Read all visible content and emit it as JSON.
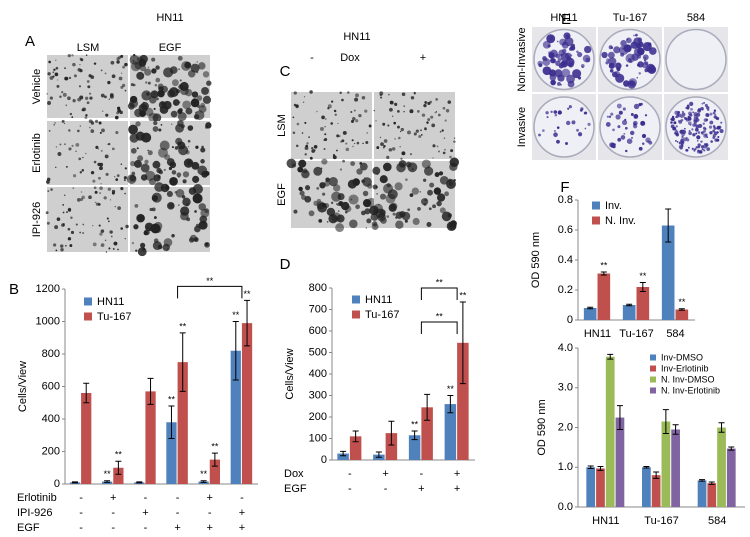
{
  "panels": {
    "A": {
      "label": "A",
      "title": "HN11",
      "columns": [
        "LSM",
        "EGF"
      ],
      "rows": [
        "Vehicle",
        "Erlotinib",
        "IPI-926"
      ]
    },
    "C": {
      "label": "C",
      "title": "HN11",
      "columns": [
        "-",
        "Dox",
        "+"
      ],
      "rows": [
        "LSM",
        "EGF"
      ]
    },
    "E": {
      "label": "E",
      "columns": [
        "HN11",
        "Tu-167",
        "584"
      ],
      "rows": [
        "Non-Invasive",
        "Invasive"
      ]
    }
  },
  "chart_data": [
    {
      "type": "bar",
      "label": "B",
      "ylabel": "Cells/View",
      "ylim": [
        0,
        1200
      ],
      "yticks": [
        0,
        200,
        400,
        600,
        800,
        1000,
        1200
      ],
      "series": [
        {
          "name": "HN11",
          "color": "#4f81bd",
          "values": [
            10,
            15,
            10,
            380,
            15,
            820
          ],
          "errors": [
            3,
            5,
            3,
            100,
            5,
            180
          ]
        },
        {
          "name": "Tu-167",
          "color": "#c0504d",
          "values": [
            560,
            100,
            570,
            750,
            150,
            990
          ],
          "errors": [
            60,
            40,
            80,
            180,
            40,
            140
          ]
        }
      ],
      "conditions": [
        {
          "label": "Erlotinib",
          "values": [
            "-",
            "+",
            "-",
            "-",
            "+",
            "-"
          ]
        },
        {
          "label": "IPI-926",
          "values": [
            "-",
            "-",
            "+",
            "-",
            "-",
            "+"
          ]
        },
        {
          "label": "EGF",
          "values": [
            "-",
            "-",
            "-",
            "+",
            "+",
            "+"
          ]
        }
      ],
      "annotations": [
        {
          "text": "**",
          "series": 0,
          "index": 1
        },
        {
          "text": "**",
          "series": 1,
          "index": 1
        },
        {
          "text": "**",
          "series": 0,
          "index": 3
        },
        {
          "text": "**",
          "series": 1,
          "index": 3
        },
        {
          "text": "**",
          "series": 0,
          "index": 4
        },
        {
          "text": "**",
          "series": 1,
          "index": 4
        },
        {
          "text": "**",
          "series": 0,
          "index": 5
        },
        {
          "text": "**",
          "series": 1,
          "index": 5
        }
      ],
      "brackets": [
        {
          "text": "**",
          "from": 3,
          "to": 5
        }
      ]
    },
    {
      "type": "bar",
      "label": "D",
      "ylabel": "Cells/View",
      "ylim": [
        0,
        800
      ],
      "yticks": [
        0,
        100,
        200,
        300,
        400,
        500,
        600,
        700,
        800
      ],
      "series": [
        {
          "name": "HN11",
          "color": "#4f81bd",
          "values": [
            30,
            25,
            115,
            260
          ],
          "errors": [
            10,
            12,
            20,
            40
          ]
        },
        {
          "name": "Tu-167",
          "color": "#c0504d",
          "values": [
            110,
            125,
            245,
            545
          ],
          "errors": [
            25,
            55,
            60,
            190
          ]
        }
      ],
      "conditions": [
        {
          "label": "Dox",
          "values": [
            "-",
            "+",
            "-",
            "+"
          ]
        },
        {
          "label": "EGF",
          "values": [
            "-",
            "-",
            "+",
            "+"
          ]
        }
      ],
      "annotations": [
        {
          "text": "**",
          "series": 0,
          "index": 2
        },
        {
          "text": "**",
          "series": 0,
          "index": 3
        },
        {
          "text": "**",
          "series": 1,
          "index": 3
        }
      ],
      "brackets": [
        {
          "text": "**",
          "from": 2,
          "to": 3
        },
        {
          "text": "**",
          "from": 2,
          "to": 3
        }
      ]
    },
    {
      "type": "bar",
      "label": "F",
      "ylabel": "OD 590 nm",
      "categories": [
        "HN11",
        "Tu-167",
        "584"
      ],
      "ylim": [
        0,
        0.8
      ],
      "yticks": [
        0,
        0.2,
        0.4,
        0.6,
        0.8
      ],
      "series": [
        {
          "name": "Inv.",
          "color": "#4f81bd",
          "values": [
            0.08,
            0.1,
            0.63
          ],
          "errors": [
            0.005,
            0.005,
            0.11
          ]
        },
        {
          "name": "N. Inv.",
          "color": "#c0504d",
          "values": [
            0.31,
            0.22,
            0.07
          ],
          "errors": [
            0.01,
            0.03,
            0.005
          ]
        }
      ],
      "annotations": [
        {
          "text": "**",
          "series": 1,
          "index": 0
        },
        {
          "text": "**",
          "series": 1,
          "index": 1
        },
        {
          "text": "**",
          "series": 1,
          "index": 2
        }
      ]
    },
    {
      "type": "bar",
      "ylabel": "OD 590 nm",
      "categories": [
        "HN11",
        "Tu-167",
        "584"
      ],
      "ylim": [
        0,
        4
      ],
      "yticks": [
        {
          "value": 0,
          "label": "0.0"
        },
        {
          "value": 1,
          "label": "1.0"
        },
        {
          "value": 2,
          "label": "2.0"
        },
        {
          "value": 3,
          "label": "3.0"
        },
        {
          "value": 4,
          "label": "4.0"
        }
      ],
      "series": [
        {
          "name": "Inv-DMSO",
          "color": "#4f81bd",
          "values": [
            1.0,
            1.0,
            0.67
          ],
          "errors": [
            0.03,
            0.02,
            0.02
          ]
        },
        {
          "name": "Inv-Erlotinib",
          "color": "#c0504d",
          "values": [
            0.97,
            0.8,
            0.6
          ],
          "errors": [
            0.05,
            0.08,
            0.03
          ]
        },
        {
          "name": "N. Inv-DMSO",
          "color": "#9bbb59",
          "values": [
            3.78,
            2.15,
            2.0
          ],
          "errors": [
            0.06,
            0.3,
            0.12
          ]
        },
        {
          "name": "N. Inv-Erlotinib",
          "color": "#8064a2",
          "values": [
            2.25,
            1.95,
            1.47
          ],
          "errors": [
            0.3,
            0.12,
            0.04
          ]
        }
      ]
    }
  ]
}
